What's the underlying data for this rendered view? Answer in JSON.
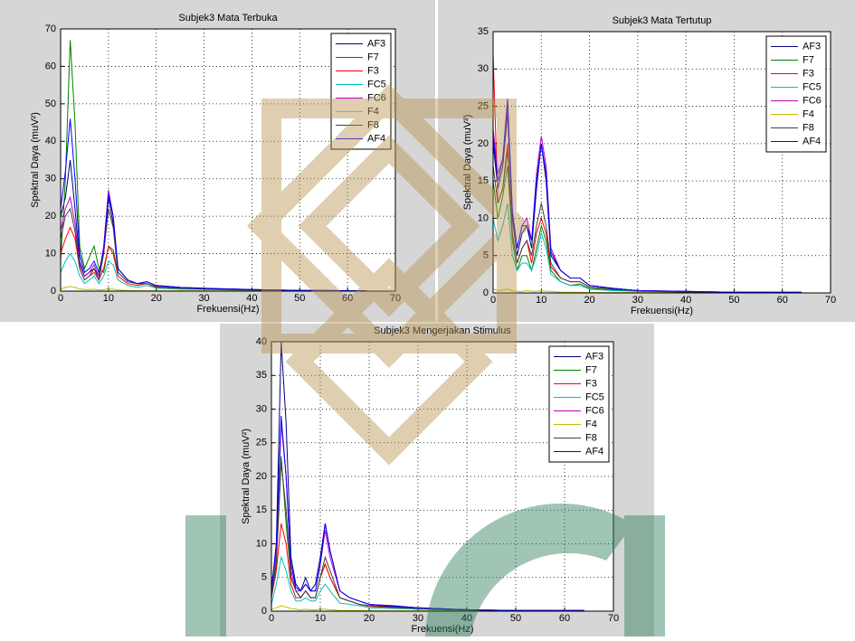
{
  "chart_data": [
    {
      "type": "line",
      "title": "Subjek3 Mata Terbuka",
      "xlabel": "Frekuensi(Hz)",
      "ylabel": "Spektral Daya (muV²)",
      "x": [
        0,
        1,
        2,
        3,
        4,
        5,
        6,
        7,
        8,
        9,
        10,
        11,
        12,
        14,
        16,
        18,
        20,
        25,
        30,
        40,
        50,
        64
      ],
      "xlim": [
        0,
        70
      ],
      "xticks": [
        0,
        10,
        20,
        30,
        40,
        50,
        60,
        70
      ],
      "ylim": [
        0,
        70
      ],
      "yticks": [
        0,
        10,
        20,
        30,
        40,
        50,
        60,
        70
      ],
      "grid": true,
      "legend": "upper right",
      "series": [
        {
          "name": "AF3",
          "color": "#000080",
          "values": [
            20,
            25,
            35,
            22,
            8,
            4,
            5,
            6,
            4,
            10,
            25,
            18,
            6,
            3,
            2,
            2.5,
            1.5,
            1,
            0.8,
            0.4,
            0.2,
            0.1
          ]
        },
        {
          "name": "F7",
          "color": "#008000",
          "values": [
            8,
            30,
            67,
            45,
            12,
            6,
            9,
            12,
            6,
            5,
            12,
            11,
            5,
            2.5,
            2,
            2,
            1.2,
            0.8,
            0.5,
            0.3,
            0.2,
            0.1
          ]
        },
        {
          "name": "F3",
          "color": "#ff0000",
          "values": [
            10,
            14,
            17,
            14,
            6,
            3,
            4,
            5,
            3,
            6,
            12,
            10,
            4,
            2,
            1.5,
            2,
            1,
            0.7,
            0.5,
            0.3,
            0.1,
            0.1
          ]
        },
        {
          "name": "FC5",
          "color": "#00bfbf",
          "values": [
            5,
            8,
            10,
            8,
            4,
            2,
            3,
            4,
            2,
            4,
            8,
            7,
            3,
            1.5,
            1,
            1.5,
            0.8,
            0.5,
            0.4,
            0.2,
            0.1,
            0.1
          ]
        },
        {
          "name": "FC6",
          "color": "#bf00bf",
          "values": [
            16,
            22,
            25,
            18,
            7,
            4,
            5,
            7,
            4,
            12,
            27,
            20,
            6,
            3,
            2,
            2.5,
            1.5,
            1,
            0.7,
            0.4,
            0.2,
            0.1
          ]
        },
        {
          "name": "F4",
          "color": "#bfbf00",
          "values": [
            0.5,
            1,
            1.2,
            1,
            0.6,
            0.4,
            0.4,
            0.5,
            0.3,
            0.4,
            0.6,
            0.5,
            0.3,
            0.2,
            0.1,
            0.1,
            0.1,
            0.1,
            0.05,
            0.05,
            0.05,
            0.05
          ]
        },
        {
          "name": "F8",
          "color": "#404040",
          "values": [
            14,
            20,
            22,
            16,
            6,
            3,
            4,
            6,
            3,
            10,
            22,
            17,
            5,
            2.5,
            2,
            2,
            1.2,
            0.8,
            0.6,
            0.3,
            0.2,
            0.1
          ]
        },
        {
          "name": "AF4",
          "color": "#0000ff",
          "values": [
            22,
            32,
            46,
            30,
            10,
            5,
            6,
            8,
            5,
            11,
            26,
            20,
            6,
            3,
            2,
            2.5,
            1.5,
            1,
            0.7,
            0.4,
            0.2,
            0.1
          ]
        }
      ]
    },
    {
      "type": "line",
      "title": "Subjek3 Mata Tertutup",
      "xlabel": "Frekuensi(Hz)",
      "ylabel": "Spektral Daya (muV²)",
      "x": [
        0,
        1,
        2,
        3,
        4,
        5,
        6,
        7,
        8,
        9,
        10,
        11,
        12,
        14,
        16,
        18,
        20,
        25,
        30,
        40,
        50,
        64
      ],
      "xlim": [
        0,
        70
      ],
      "xticks": [
        0,
        10,
        20,
        30,
        40,
        50,
        60,
        70
      ],
      "ylim": [
        0,
        35
      ],
      "yticks": [
        0,
        5,
        10,
        15,
        20,
        25,
        30,
        35
      ],
      "grid": true,
      "legend": "upper right",
      "series": [
        {
          "name": "AF3",
          "color": "#000080",
          "values": [
            20,
            14,
            17,
            24,
            10,
            5,
            8,
            9,
            6,
            14,
            20,
            15,
            5,
            3,
            2,
            2,
            1,
            0.6,
            0.3,
            0.2,
            0.1,
            0.1
          ]
        },
        {
          "name": "F7",
          "color": "#008000",
          "values": [
            15,
            10,
            13,
            17,
            7,
            3,
            5,
            5,
            3,
            6,
            9,
            7,
            3,
            1.5,
            1,
            1.2,
            0.6,
            0.4,
            0.2,
            0.1,
            0.1,
            0.05
          ]
        },
        {
          "name": "F3",
          "color": "#ff0000",
          "values": [
            32,
            12,
            14,
            20,
            8,
            4,
            6,
            7,
            4,
            8,
            10,
            8,
            3.5,
            2,
            1.5,
            1.5,
            0.8,
            0.5,
            0.3,
            0.1,
            0.1,
            0.05
          ]
        },
        {
          "name": "FC5",
          "color": "#00bfbf",
          "values": [
            10,
            7,
            9,
            12,
            5,
            3,
            4,
            4,
            3,
            5,
            8,
            6,
            2.5,
            1.5,
            1,
            1,
            0.5,
            0.3,
            0.2,
            0.1,
            0.05,
            0.05
          ]
        },
        {
          "name": "FC6",
          "color": "#bf00bf",
          "values": [
            22,
            16,
            18,
            25,
            11,
            6,
            9,
            10,
            7,
            16,
            21,
            17,
            6,
            3,
            2,
            2,
            1,
            0.6,
            0.3,
            0.2,
            0.1,
            0.1
          ]
        },
        {
          "name": "F4",
          "color": "#bfbf00",
          "values": [
            0.5,
            0.3,
            0.4,
            0.5,
            0.3,
            0.2,
            0.2,
            0.3,
            0.2,
            0.2,
            0.3,
            0.2,
            0.2,
            0.1,
            0.1,
            0.1,
            0.05,
            0.05,
            0.05,
            0.05,
            0.05,
            0.05
          ]
        },
        {
          "name": "F8",
          "color": "#404040",
          "values": [
            17,
            12,
            14,
            19,
            8,
            4,
            6,
            7,
            5,
            9,
            12,
            9,
            4,
            2,
            1.5,
            1.5,
            0.8,
            0.5,
            0.3,
            0.1,
            0.1,
            0.05
          ]
        },
        {
          "name": "AF4",
          "color": "#0000ff",
          "values": [
            21,
            15,
            18,
            26,
            11,
            6,
            9,
            9,
            7,
            15,
            20,
            16,
            5.5,
            3,
            2,
            2,
            1,
            0.6,
            0.3,
            0.2,
            0.1,
            0.1
          ]
        }
      ]
    },
    {
      "type": "line",
      "title": "Subjek3 Mengerjakan Stimulus",
      "xlabel": "Frekuensi(Hz)",
      "ylabel": "Spektral Daya (muV²)",
      "x": [
        0,
        1,
        2,
        3,
        4,
        5,
        6,
        7,
        8,
        9,
        10,
        11,
        12,
        14,
        16,
        18,
        20,
        25,
        30,
        40,
        50,
        64
      ],
      "xlim": [
        0,
        70
      ],
      "xticks": [
        0,
        10,
        20,
        30,
        40,
        50,
        60,
        70
      ],
      "ylim": [
        0,
        40
      ],
      "yticks": [
        0,
        5,
        10,
        15,
        20,
        25,
        30,
        35,
        40
      ],
      "grid": true,
      "legend": "upper right",
      "series": [
        {
          "name": "AF3",
          "color": "#000080",
          "values": [
            3,
            10,
            40,
            28,
            8,
            4,
            3,
            5,
            3,
            4,
            8,
            13,
            9,
            3,
            2,
            1.5,
            1,
            0.8,
            0.5,
            0.2,
            0.1,
            0.1
          ]
        },
        {
          "name": "F7",
          "color": "#008000",
          "values": [
            2,
            8,
            23,
            13,
            5,
            3,
            2,
            3,
            2,
            2,
            5,
            7,
            5,
            2,
            1.5,
            1,
            0.8,
            0.6,
            0.4,
            0.2,
            0.1,
            0.1
          ]
        },
        {
          "name": "F3",
          "color": "#ff0000",
          "values": [
            2,
            6,
            13,
            10,
            4,
            2,
            2,
            3,
            2,
            2,
            5,
            7,
            5,
            2,
            1.5,
            1,
            0.7,
            0.5,
            0.3,
            0.1,
            0.1,
            0.1
          ]
        },
        {
          "name": "FC5",
          "color": "#00bfbf",
          "values": [
            1,
            4,
            8,
            6,
            3,
            1.5,
            1.5,
            2,
            1.5,
            1.5,
            3,
            4,
            3,
            1.2,
            1,
            0.8,
            0.5,
            0.4,
            0.3,
            0.1,
            0.05,
            0.05
          ]
        },
        {
          "name": "FC6",
          "color": "#bf00bf",
          "values": [
            3,
            9,
            28,
            20,
            6,
            3,
            3,
            4,
            3,
            3,
            7,
            12,
            8,
            3,
            2,
            1.5,
            1,
            0.7,
            0.5,
            0.2,
            0.1,
            0.1
          ]
        },
        {
          "name": "F4",
          "color": "#bfbf00",
          "values": [
            0.3,
            0.5,
            0.8,
            0.6,
            0.4,
            0.3,
            0.2,
            0.3,
            0.2,
            0.2,
            0.3,
            0.3,
            0.2,
            0.1,
            0.1,
            0.1,
            0.05,
            0.05,
            0.05,
            0.05,
            0.05,
            0.05
          ]
        },
        {
          "name": "F8",
          "color": "#404040",
          "values": [
            2,
            7,
            22,
            15,
            5,
            3,
            2,
            3,
            2,
            2,
            5,
            8,
            6,
            2,
            1.5,
            1,
            0.8,
            0.6,
            0.4,
            0.2,
            0.1,
            0.1
          ]
        },
        {
          "name": "AF4",
          "color": "#0000ff",
          "values": [
            3,
            10,
            29,
            20,
            7,
            3.5,
            3,
            4,
            3,
            3,
            7,
            13,
            9,
            3,
            2,
            1.5,
            1,
            0.7,
            0.5,
            0.2,
            0.1,
            0.1
          ]
        }
      ]
    }
  ]
}
